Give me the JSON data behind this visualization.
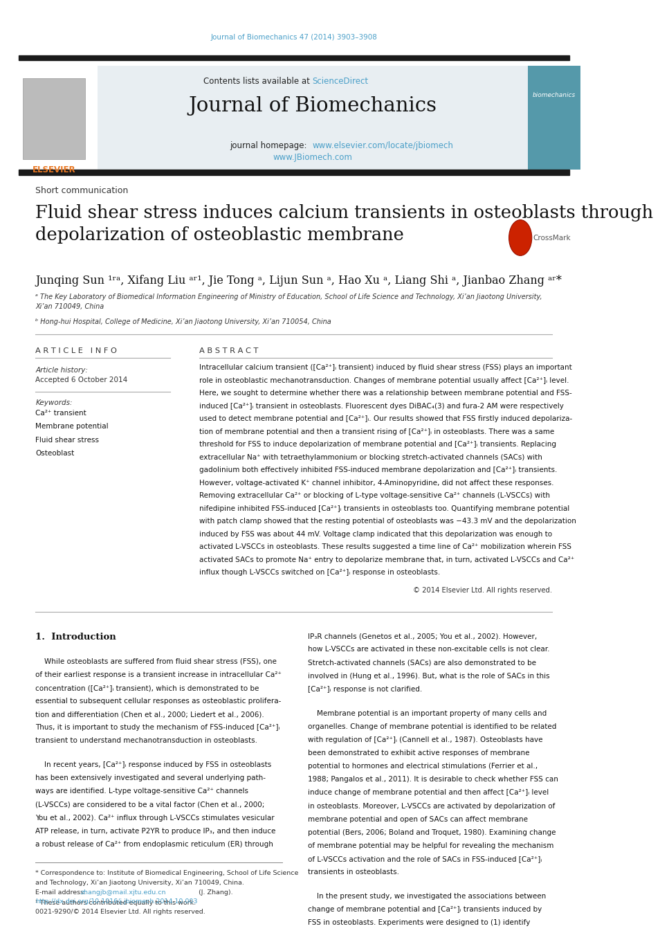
{
  "page_width": 9.92,
  "page_height": 13.23,
  "bg_color": "#ffffff",
  "journal_ref_text": "Journal of Biomechanics 47 (2014) 3903–3908",
  "journal_ref_color": "#4a9fc8",
  "header_bg_color": "#e8eef2",
  "header_title": "Journal of Biomechanics",
  "header_url1": "www.elsevier.com/locate/jbiomech",
  "header_url2": "www.JBiomech.com",
  "link_color": "#4a9fc8",
  "black_bar_color": "#1a1a1a",
  "short_comm_text": "Short communication",
  "article_title": "Fluid shear stress induces calcium transients in osteoblasts through\ndepolarization of osteoblastic membrane",
  "affil_a": "ᵃ The Key Laboratory of Biomedical Information Engineering of Ministry of Education, School of Life Science and Technology, Xi’an Jiaotong University,\nXi’an 710049, China",
  "affil_b": "ᵇ Hong-hui Hospital, College of Medicine, Xi’an Jiaotong University, Xi’an 710054, China",
  "article_info_header": "A R T I C L E   I N F O",
  "abstract_header": "A B S T R A C T",
  "article_history_label": "Article history:",
  "accepted_text": "Accepted 6 October 2014",
  "keywords_label": "Keywords:",
  "keywords": [
    "Ca²⁺ transient",
    "Membrane potential",
    "Fluid shear stress",
    "Osteoblast"
  ],
  "abstract_lines": [
    "Intracellular calcium transient ([Ca²⁺]ᵢ transient) induced by fluid shear stress (FSS) plays an important",
    "role in osteoblastic mechanotransduction. Changes of membrane potential usually affect [Ca²⁺]ᵢ level.",
    "Here, we sought to determine whether there was a relationship between membrane potential and FSS-",
    "induced [Ca²⁺]ᵢ transient in osteoblasts. Fluorescent dyes DiBAC₄(3) and fura-2 AM were respectively",
    "used to detect membrane potential and [Ca²⁺]ᵢ. Our results showed that FSS firstly induced depolariza-",
    "tion of membrane potential and then a transient rising of [Ca²⁺]ᵢ in osteoblasts. There was a same",
    "threshold for FSS to induce depolarization of membrane potential and [Ca²⁺]ᵢ transients. Replacing",
    "extracellular Na⁺ with tetraethylammonium or blocking stretch-activated channels (SACs) with",
    "gadolinium both effectively inhibited FSS-induced membrane depolarization and [Ca²⁺]ᵢ transients.",
    "However, voltage-activated K⁺ channel inhibitor, 4-Aminopyridine, did not affect these responses.",
    "Removing extracellular Ca²⁺ or blocking of L-type voltage-sensitive Ca²⁺ channels (L-VSCCs) with",
    "nifedipine inhibited FSS-induced [Ca²⁺]ᵢ transients in osteoblasts too. Quantifying membrane potential",
    "with patch clamp showed that the resting potential of osteoblasts was −43.3 mV and the depolarization",
    "induced by FSS was about 44 mV. Voltage clamp indicated that this depolarization was enough to",
    "activated L-VSCCs in osteoblasts. These results suggested a time line of Ca²⁺ mobilization wherein FSS",
    "activated SACs to promote Na⁺ entry to depolarize membrane that, in turn, activated L-VSCCs and Ca²⁺",
    "influx though L-VSCCs switched on [Ca²⁺]ᵢ response in osteoblasts."
  ],
  "copyright_text": "© 2014 Elsevier Ltd. All rights reserved.",
  "intro_header": "1.  Introduction",
  "intro_left_lines": [
    "    While osteoblasts are suffered from fluid shear stress (FSS), one",
    "of their earliest response is a transient increase in intracellular Ca²⁺",
    "concentration ([Ca²⁺]ᵢ transient), which is demonstrated to be",
    "essential to subsequent cellular responses as osteoblastic prolifera-",
    "tion and differentiation (Chen et al., 2000; Liedert et al., 2006).",
    "Thus, it is important to study the mechanism of FSS-induced [Ca²⁺]ᵢ",
    "transient to understand mechanotransduction in osteoblasts."
  ],
  "intro_left_lines2": [
    "    In recent years, [Ca²⁺]ᵢ response induced by FSS in osteoblasts",
    "has been extensively investigated and several underlying path-",
    "ways are identified. L-type voltage-sensitive Ca²⁺ channels",
    "(L-VSCCs) are considered to be a vital factor (Chen et al., 2000;",
    "You et al., 2002). Ca²⁺ influx through L-VSCCs stimulates vesicular",
    "ATP release, in turn, activate P2YR to produce IP₃, and then induce",
    "a robust release of Ca²⁺ from endoplasmic reticulum (ER) through"
  ],
  "intro_right_lines1": [
    "IP₃R channels (Genetos et al., 2005; You et al., 2002). However,",
    "how L-VSCCs are activated in these non-excitable cells is not clear.",
    "Stretch-activated channels (SACs) are also demonstrated to be",
    "involved in (Hung et al., 1996). But, what is the role of SACs in this",
    "[Ca²⁺]ᵢ response is not clarified."
  ],
  "intro_right_lines2": [
    "    Membrane potential is an important property of many cells and",
    "organelles. Change of membrane potential is identified to be related",
    "with regulation of [Ca²⁺]ᵢ (Cannell et al., 1987). Osteoblasts have",
    "been demonstrated to exhibit active responses of membrane",
    "potential to hormones and electrical stimulations (Ferrier et al.,",
    "1988; Pangalos et al., 2011). It is desirable to check whether FSS can",
    "induce change of membrane potential and then affect [Ca²⁺]ᵢ level",
    "in osteoblasts. Moreover, L-VSCCs are activated by depolarization of",
    "membrane potential and open of SACs can affect membrane",
    "potential (Bers, 2006; Boland and Troquet, 1980). Examining change",
    "of membrane potential may be helpful for revealing the mechanism",
    "of L-VSCCs activation and the role of SACs in FSS-induced [Ca²⁺]ᵢ",
    "transients in osteoblasts."
  ],
  "intro_right_lines3": [
    "    In the present study, we investigated the associations between",
    "change of membrane potential and [Ca²⁺]ᵢ transients induced by",
    "FSS in osteoblasts. Experiments were designed to (1) identify"
  ],
  "footer_line1a": "* Correspondence to: Institute of Biomedical Engineering, School of Life Science",
  "footer_line1b": "and Technology, Xi’an Jiaotong University, Xi’an 710049, China.",
  "footer_email_pre": "E-mail address: ",
  "footer_email": "zhangjb@mail.xjtu.edu.cn",
  "footer_email_post": " (J. Zhang).",
  "footer_footnote": "¹ These authors contributed equally to this work.",
  "doi_text": "http://dx.doi.org/10.1016/j.jbiomech.2014.10.003",
  "issn_text": "0021-9290/© 2014 Elsevier Ltd. All rights reserved."
}
